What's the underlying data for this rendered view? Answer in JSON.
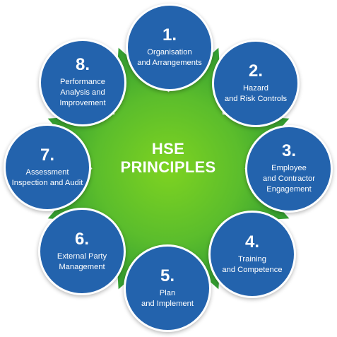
{
  "diagram": {
    "center": {
      "title_line1": "HSE",
      "title_line2": "PRINCIPLES"
    },
    "colors": {
      "node_fill": "#2363ad",
      "center_light": "#7ed321",
      "center_dark": "#2f9a32",
      "text": "#ffffff"
    },
    "nodes": [
      {
        "number": "1.",
        "lines": [
          "Organisation",
          "and Arrangements"
        ]
      },
      {
        "number": "2.",
        "lines": [
          "Hazard",
          "and Risk Controls"
        ]
      },
      {
        "number": "3.",
        "lines": [
          "Employee",
          "and Contractor",
          "Engagement"
        ]
      },
      {
        "number": "4.",
        "lines": [
          "Training",
          "and Competence"
        ]
      },
      {
        "number": "5.",
        "lines": [
          "Plan",
          "and Implement"
        ]
      },
      {
        "number": "6.",
        "lines": [
          "External Party",
          "Management"
        ]
      },
      {
        "number": "7.",
        "lines": [
          "Assessment",
          "Inspection and Audit"
        ]
      },
      {
        "number": "8.",
        "lines": [
          "Performance",
          "Analysis and",
          "Improvement"
        ]
      }
    ]
  }
}
